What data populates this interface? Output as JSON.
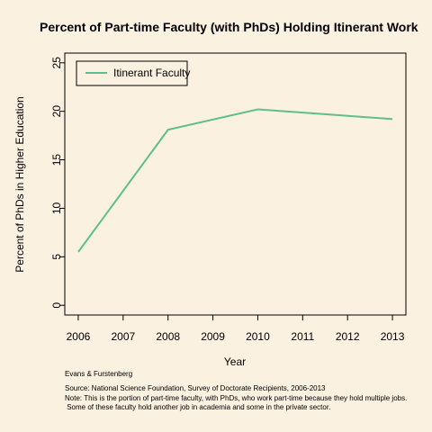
{
  "chart_data": {
    "type": "line",
    "title": "Percent of Part-time Faculty (with PhDs) Holding Itinerant Work",
    "xlabel": "Year",
    "ylabel": "Percent of PhDs in Higher Education",
    "xlim": [
      2005.7,
      2013.3
    ],
    "ylim": [
      -1,
      26
    ],
    "x_ticks": [
      2006,
      2007,
      2008,
      2009,
      2010,
      2011,
      2012,
      2013
    ],
    "y_ticks": [
      0,
      5,
      10,
      15,
      20,
      25
    ],
    "legend_position": "top-left",
    "grid": false,
    "series": [
      {
        "name": "Itinerant Faculty",
        "color": "#5EBE8C",
        "x": [
          2006,
          2008,
          2010,
          2013
        ],
        "y": [
          5.5,
          18.1,
          20.2,
          19.2
        ]
      }
    ]
  },
  "notes": {
    "author": "Evans & Furstenberg",
    "source": "Source: National Science Foundation, Survey of Doctorate Recipients, 2006-2013",
    "note_line1": "Note: This is the portion of part-time faculty, with PhDs, who work part-time because they hold multiple jobs.",
    "note_line2": " Some of these faculty hold another job in academia and some in the private sector."
  }
}
